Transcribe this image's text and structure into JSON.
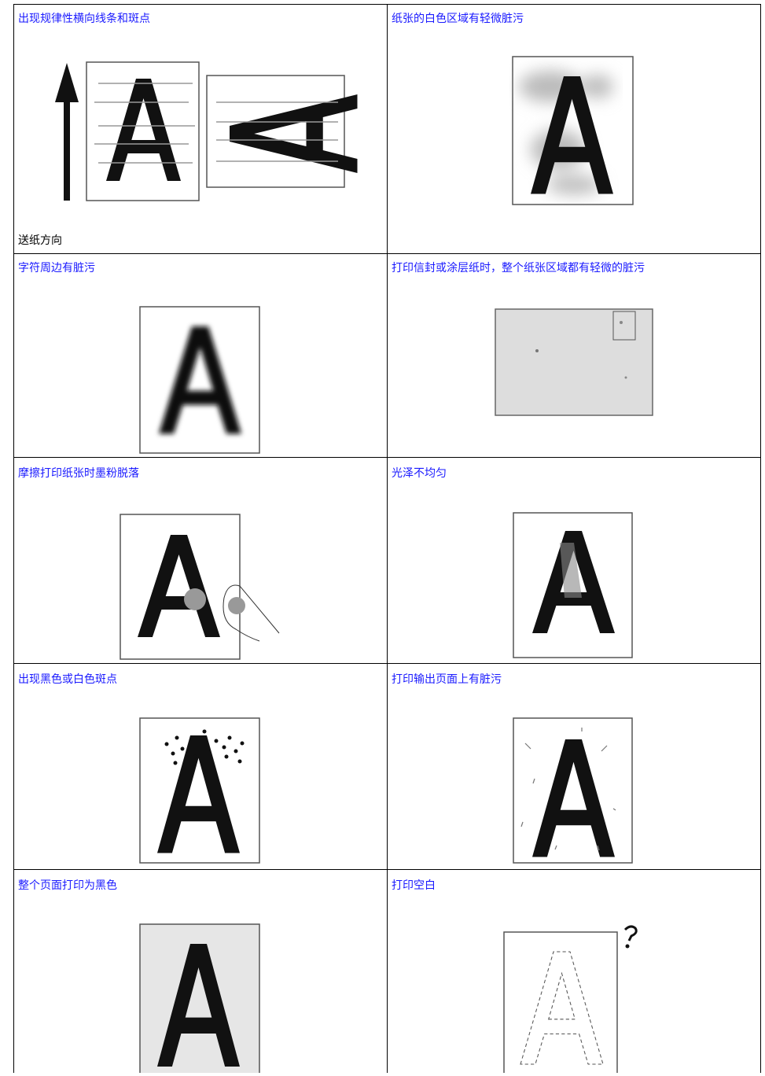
{
  "table": {
    "rows": [
      [
        {
          "title": "出现规律性横向线条和斑点",
          "caption": "送纸方向"
        },
        {
          "title": "纸张的白色区域有轻微脏污"
        }
      ],
      [
        {
          "title": "字符周边有脏污"
        },
        {
          "title": "打印信封或涂层纸时，整个纸张区域都有轻微的脏污"
        }
      ],
      [
        {
          "title": "摩擦打印纸张时墨粉脱落"
        },
        {
          "title": "光泽不均匀"
        }
      ],
      [
        {
          "title": "出现黑色或白色斑点"
        },
        {
          "title": "打印输出页面上有脏污"
        }
      ],
      [
        {
          "title": "整个页面打印为黑色"
        },
        {
          "title": "打印空白"
        }
      ]
    ]
  }
}
